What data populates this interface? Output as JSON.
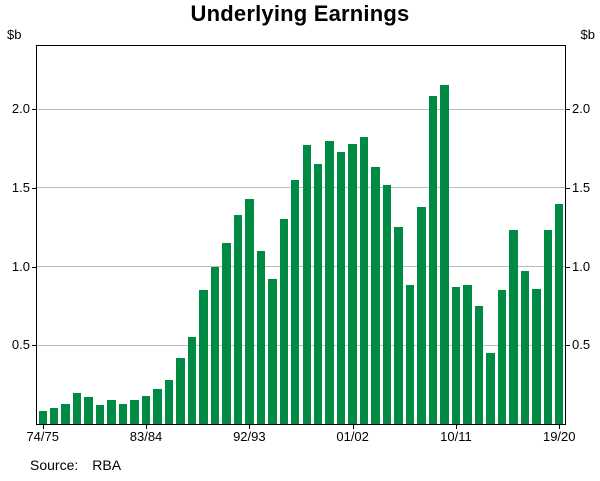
{
  "title": "Underlying Earnings",
  "y_unit": "$b",
  "source_label": "Source:",
  "source_value": "RBA",
  "colors": {
    "bar": "#008B45",
    "grid": "#bdbdbd",
    "axis": "#000000"
  },
  "chart_data": {
    "type": "bar",
    "title": "Underlying Earnings",
    "ylabel": "$b",
    "ylim": [
      0,
      2.4
    ],
    "yticks": [
      0.5,
      1.0,
      1.5,
      2.0
    ],
    "ytick_labels": [
      "0.5",
      "1.0",
      "1.5",
      "2.0"
    ],
    "xticks": {
      "indices": [
        0,
        9,
        18,
        27,
        36,
        45
      ],
      "labels": [
        "74/75",
        "83/84",
        "92/93",
        "01/02",
        "10/11",
        "19/20"
      ]
    },
    "categories": [
      "1974/75",
      "1975/76",
      "1976/77",
      "1977/78",
      "1978/79",
      "1979/80",
      "1980/81",
      "1981/82",
      "1982/83",
      "1983/84",
      "1984/85",
      "1985/86",
      "1986/87",
      "1987/88",
      "1988/89",
      "1989/90",
      "1990/91",
      "1991/92",
      "1992/93",
      "1993/94",
      "1994/95",
      "1995/96",
      "1996/97",
      "1997/98",
      "1998/99",
      "1999/00",
      "2000/01",
      "2001/02",
      "2002/03",
      "2003/04",
      "2004/05",
      "2005/06",
      "2006/07",
      "2007/08",
      "2008/09",
      "2009/10",
      "2010/11",
      "2011/12",
      "2012/13",
      "2013/14",
      "2014/15",
      "2015/16",
      "2016/17",
      "2017/18",
      "2018/19",
      "2019/20"
    ],
    "values": [
      0.08,
      0.1,
      0.13,
      0.2,
      0.17,
      0.12,
      0.15,
      0.13,
      0.15,
      0.18,
      0.22,
      0.28,
      0.42,
      0.55,
      0.85,
      1.0,
      1.15,
      1.33,
      1.43,
      1.1,
      0.92,
      1.3,
      1.55,
      1.77,
      1.65,
      1.8,
      1.73,
      1.78,
      1.82,
      1.63,
      1.52,
      1.25,
      0.88,
      1.38,
      2.08,
      2.15,
      0.87,
      0.88,
      0.75,
      0.45,
      0.85,
      1.23,
      0.97,
      0.86,
      1.23,
      1.4
    ],
    "grid": true,
    "legend": "none"
  }
}
